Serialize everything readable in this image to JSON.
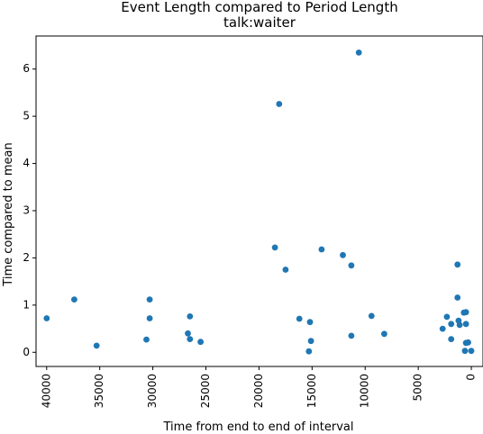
{
  "chart_data": {
    "type": "scatter",
    "title": "Event Length compared to Period Length",
    "subtitle": "talk:waiter",
    "xlabel": "Time from end to end of interval",
    "ylabel": "Time compared to mean",
    "xlim": [
      41000,
      -1100
    ],
    "ylim": [
      -0.3,
      6.7
    ],
    "x_inverted": true,
    "x_ticks": [
      40000,
      35000,
      30000,
      25000,
      20000,
      15000,
      10000,
      5000,
      0
    ],
    "y_ticks": [
      0,
      1,
      2,
      3,
      4,
      5,
      6
    ],
    "grid": false,
    "marker_color": "#1f77b4",
    "points": [
      {
        "x": 40000,
        "y": 0.72
      },
      {
        "x": 37400,
        "y": 1.12
      },
      {
        "x": 35300,
        "y": 0.14
      },
      {
        "x": 30600,
        "y": 0.27
      },
      {
        "x": 30300,
        "y": 1.12
      },
      {
        "x": 30300,
        "y": 0.72
      },
      {
        "x": 26700,
        "y": 0.4
      },
      {
        "x": 26500,
        "y": 0.76
      },
      {
        "x": 26500,
        "y": 0.28
      },
      {
        "x": 25500,
        "y": 0.22
      },
      {
        "x": 18500,
        "y": 2.22
      },
      {
        "x": 18100,
        "y": 5.26
      },
      {
        "x": 17500,
        "y": 1.75
      },
      {
        "x": 16200,
        "y": 0.71
      },
      {
        "x": 15200,
        "y": 0.64
      },
      {
        "x": 15100,
        "y": 0.24
      },
      {
        "x": 15300,
        "y": 0.02
      },
      {
        "x": 14100,
        "y": 2.18
      },
      {
        "x": 12100,
        "y": 2.06
      },
      {
        "x": 11300,
        "y": 1.84
      },
      {
        "x": 11300,
        "y": 0.35
      },
      {
        "x": 10600,
        "y": 6.35
      },
      {
        "x": 9400,
        "y": 0.77
      },
      {
        "x": 8200,
        "y": 0.39
      },
      {
        "x": 2700,
        "y": 0.5
      },
      {
        "x": 2300,
        "y": 0.75
      },
      {
        "x": 1900,
        "y": 0.28
      },
      {
        "x": 1900,
        "y": 0.6
      },
      {
        "x": 1300,
        "y": 1.86
      },
      {
        "x": 1300,
        "y": 1.16
      },
      {
        "x": 1200,
        "y": 0.67
      },
      {
        "x": 1100,
        "y": 0.58
      },
      {
        "x": 700,
        "y": 0.84
      },
      {
        "x": 500,
        "y": 0.85
      },
      {
        "x": 500,
        "y": 0.6
      },
      {
        "x": 500,
        "y": 0.2
      },
      {
        "x": 300,
        "y": 0.21
      },
      {
        "x": 600,
        "y": 0.03
      },
      {
        "x": 0,
        "y": 0.03
      }
    ]
  }
}
